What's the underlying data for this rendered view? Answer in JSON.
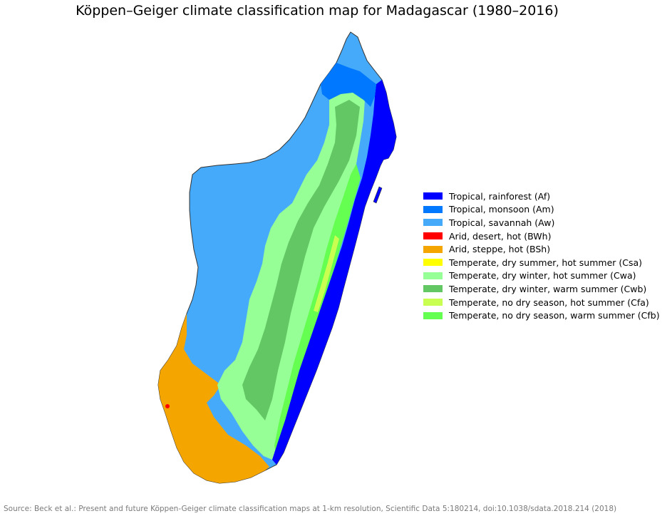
{
  "title": "Köppen–Geiger climate classification map for Madagascar (1980–2016)",
  "legend": [
    {
      "label": "Tropical, rainforest (Af)",
      "color": "#0000ff"
    },
    {
      "label": "Tropical, monsoon (Am)",
      "color": "#0078ff"
    },
    {
      "label": "Tropical, savannah (Aw)",
      "color": "#46aafa"
    },
    {
      "label": "Arid, desert, hot (BWh)",
      "color": "#ff0000"
    },
    {
      "label": "Arid, steppe, hot (BSh)",
      "color": "#f5a500"
    },
    {
      "label": "Temperate, dry summer, hot summer (Csa)",
      "color": "#ffff00"
    },
    {
      "label": "Temperate, dry winter, hot summer (Cwa)",
      "color": "#96ff96"
    },
    {
      "label": "Temperate, dry winter, warm summer (Cwb)",
      "color": "#63c764"
    },
    {
      "label": "Temperate, no dry season, hot summer (Cfa)",
      "color": "#c8ff50"
    },
    {
      "label": "Temperate, no dry season, warm summer (Cfb)",
      "color": "#64ff50"
    }
  ],
  "source": "Source: Beck et al.: Present and future Köppen-Geiger climate classification maps at 1-km resolution, Scientific Data 5:180214, doi:10.1038/sdata.2018.214 (2018)"
}
